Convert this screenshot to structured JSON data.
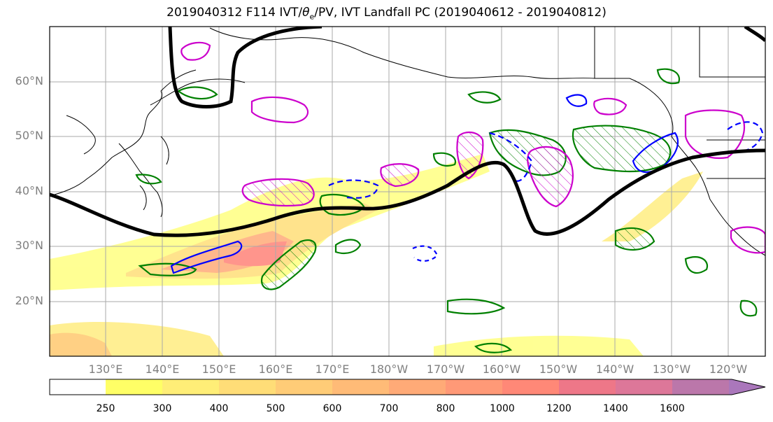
{
  "title_main": "2019040312 F114 IVT/",
  "title_theta": "θ",
  "title_sub": "e",
  "title_rest": "/PV, IVT Landfall PC (2019040612 - 2019040812)",
  "lat_labels": [
    "60°N",
    "50°N",
    "40°N",
    "30°N",
    "20°N"
  ],
  "lon_labels": [
    "130°E",
    "140°E",
    "150°E",
    "160°E",
    "170°E",
    "180°W",
    "170°W",
    "160°W",
    "150°W",
    "140°W",
    "130°W",
    "120°W"
  ],
  "colorbar": {
    "ticks": [
      "250",
      "300",
      "400",
      "500",
      "600",
      "700",
      "800",
      "1000",
      "1200",
      "1400",
      "1600"
    ],
    "colors": [
      "#ffff66",
      "#ffee77",
      "#ffdd77",
      "#ffcc77",
      "#ffbb77",
      "#ffaa77",
      "#ff9977",
      "#ff8877",
      "#ee7788",
      "#dd7799",
      "#bb77aa",
      "#aa77bb"
    ]
  },
  "legend_colors": {
    "theta_e": "#008000",
    "pv_pos": "#cc00cc",
    "pv_neg": "#0000ff",
    "ivt_pc": "#000000"
  }
}
